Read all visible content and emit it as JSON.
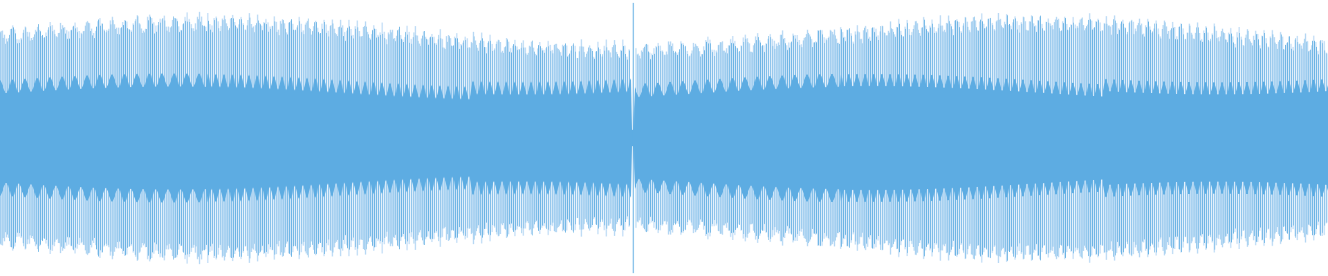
{
  "waveform": {
    "colors": {
      "background": "#ffffff",
      "peak": "#b3d6f3",
      "line": "#5dacE2",
      "body": "#5dace2",
      "cursor": "#5dace2"
    },
    "playhead_fraction": 0.4765
  }
}
